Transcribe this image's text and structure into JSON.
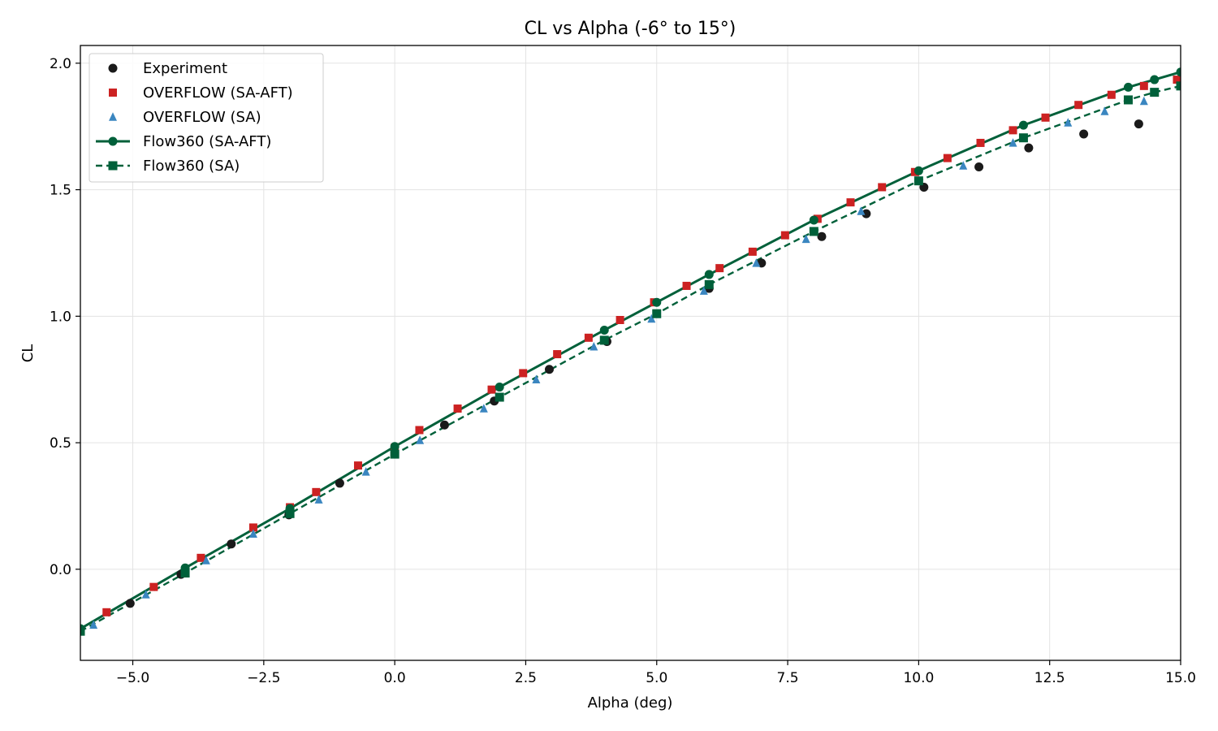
{
  "chart_data": {
    "type": "scatter",
    "title": "CL vs Alpha (-6° to 15°)",
    "xlabel": "Alpha (deg)",
    "ylabel": "CL",
    "xlim": [
      -6,
      15
    ],
    "ylim": [
      -0.36,
      2.07
    ],
    "xticks": [
      -5.0,
      -2.5,
      0.0,
      2.5,
      5.0,
      7.5,
      10.0,
      12.5,
      15.0
    ],
    "yticks": [
      0.0,
      0.5,
      1.0,
      1.5,
      2.0
    ],
    "grid": true,
    "legend_position": "top-left",
    "series": [
      {
        "name": "Experiment",
        "marker": "circle",
        "line": "none",
        "color": "#1a1a1a",
        "x": [
          -5.05,
          -4.08,
          -3.12,
          -2.02,
          -1.05,
          0.95,
          1.9,
          2.95,
          4.05,
          6.0,
          7.0,
          8.15,
          9.0,
          10.1,
          11.15,
          12.1,
          13.15,
          14.2
        ],
        "y": [
          -0.135,
          -0.02,
          0.1,
          0.215,
          0.34,
          0.57,
          0.665,
          0.79,
          0.9,
          1.11,
          1.21,
          1.315,
          1.405,
          1.51,
          1.59,
          1.665,
          1.72,
          1.76
        ]
      },
      {
        "name": "OVERFLOW (SA-AFT)",
        "marker": "square",
        "line": "none",
        "color": "#cc2222",
        "x": [
          -5.5,
          -4.6,
          -3.7,
          -2.7,
          -2.0,
          -1.5,
          -0.7,
          0.0,
          0.47,
          1.2,
          1.85,
          2.45,
          3.1,
          3.7,
          4.3,
          4.95,
          5.57,
          6.2,
          6.83,
          7.45,
          8.07,
          8.7,
          9.3,
          9.93,
          10.55,
          11.18,
          11.8,
          12.42,
          13.05,
          13.68,
          14.3,
          14.93
        ],
        "y": [
          -0.17,
          -0.07,
          0.045,
          0.165,
          0.245,
          0.305,
          0.41,
          0.48,
          0.55,
          0.635,
          0.71,
          0.775,
          0.85,
          0.915,
          0.985,
          1.055,
          1.12,
          1.19,
          1.255,
          1.32,
          1.385,
          1.45,
          1.51,
          1.57,
          1.625,
          1.685,
          1.735,
          1.785,
          1.835,
          1.875,
          1.91,
          1.935
        ]
      },
      {
        "name": "OVERFLOW (SA)",
        "marker": "triangle",
        "line": "none",
        "color": "#3a86c0",
        "x": [
          -5.75,
          -4.75,
          -3.6,
          -2.7,
          -1.45,
          -0.55,
          0.48,
          1.7,
          2.7,
          3.8,
          4.9,
          5.9,
          6.9,
          7.85,
          8.9,
          10.85,
          11.8,
          12.85,
          13.55,
          14.3
        ],
        "y": [
          -0.22,
          -0.1,
          0.035,
          0.14,
          0.275,
          0.385,
          0.51,
          0.635,
          0.75,
          0.88,
          0.99,
          1.1,
          1.21,
          1.305,
          1.415,
          1.595,
          1.685,
          1.765,
          1.81,
          1.85
        ]
      },
      {
        "name": "Flow360 (SA-AFT)",
        "marker": "circle",
        "line": "solid",
        "color": "#00603a",
        "x": [
          -6.0,
          -4.0,
          -2.0,
          0.0,
          2.0,
          4.0,
          5.0,
          6.0,
          8.0,
          10.0,
          12.0,
          14.0,
          14.5,
          15.0
        ],
        "y": [
          -0.235,
          0.005,
          0.24,
          0.485,
          0.72,
          0.945,
          1.055,
          1.165,
          1.38,
          1.575,
          1.755,
          1.905,
          1.935,
          1.965
        ]
      },
      {
        "name": "Flow360 (SA)",
        "marker": "square",
        "line": "dashed",
        "color": "#00603a",
        "x": [
          -6.0,
          -4.0,
          -2.0,
          0.0,
          2.0,
          4.0,
          5.0,
          6.0,
          8.0,
          10.0,
          12.0,
          14.0,
          14.5,
          15.0
        ],
        "y": [
          -0.245,
          -0.015,
          0.22,
          0.455,
          0.68,
          0.905,
          1.01,
          1.125,
          1.335,
          1.535,
          1.705,
          1.855,
          1.885,
          1.91
        ]
      }
    ]
  }
}
